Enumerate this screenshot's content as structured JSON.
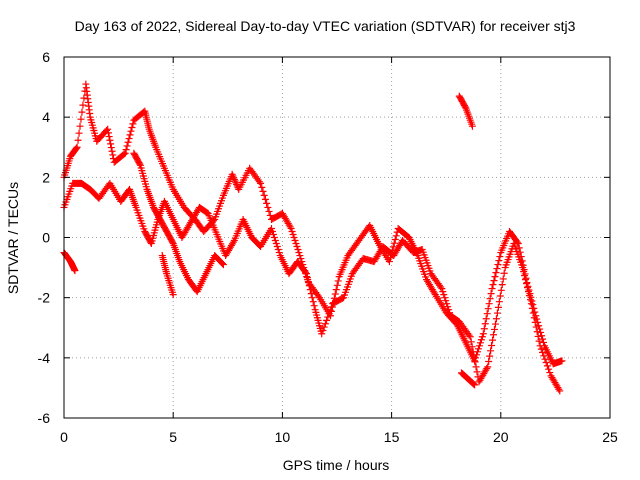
{
  "chart_data": {
    "type": "scatter",
    "title": "Day 163 of 2022, Sidereal Day-to-day VTEC variation (SDTVAR) for receiver stj3",
    "xlabel": "GPS time / hours",
    "ylabel": "SDTVAR / TECUs",
    "xlim": [
      0,
      25
    ],
    "ylim": [
      -6,
      6
    ],
    "xticks": [
      0,
      5,
      10,
      15,
      20,
      25
    ],
    "yticks": [
      -6,
      -4,
      -2,
      0,
      2,
      4,
      6
    ],
    "grid": true,
    "marker": "plus",
    "color": "#ff0000",
    "series": [
      {
        "name": "track-a",
        "points": [
          [
            0.0,
            2.0
          ],
          [
            0.3,
            2.7
          ],
          [
            0.6,
            3.0
          ],
          [
            1.0,
            5.1
          ],
          [
            1.2,
            4.0
          ],
          [
            1.5,
            3.2
          ],
          [
            2.0,
            3.6
          ],
          [
            2.3,
            2.5
          ],
          [
            2.8,
            2.8
          ],
          [
            3.2,
            3.9
          ],
          [
            3.7,
            4.2
          ],
          [
            3.9,
            3.6
          ],
          [
            4.2,
            3.0
          ],
          [
            4.6,
            2.3
          ],
          [
            5.0,
            1.6
          ],
          [
            5.5,
            1.0
          ],
          [
            6.0,
            0.6
          ],
          [
            6.4,
            0.2
          ],
          [
            6.9,
            0.6
          ],
          [
            7.3,
            1.4
          ],
          [
            7.7,
            2.1
          ],
          [
            8.0,
            1.6
          ],
          [
            8.5,
            2.3
          ],
          [
            9.0,
            1.8
          ],
          [
            9.5,
            0.6
          ],
          [
            10.0,
            0.8
          ],
          [
            10.4,
            0.3
          ],
          [
            10.8,
            -0.6
          ],
          [
            11.2,
            -1.5
          ],
          [
            11.7,
            -2.0
          ],
          [
            12.2,
            -2.6
          ],
          [
            12.6,
            -1.3
          ],
          [
            13.0,
            -0.6
          ],
          [
            13.5,
            -0.1
          ],
          [
            14.0,
            0.4
          ],
          [
            14.4,
            -0.2
          ],
          [
            14.9,
            -0.8
          ],
          [
            15.3,
            0.3
          ],
          [
            15.8,
            0.0
          ],
          [
            16.2,
            -0.6
          ],
          [
            16.6,
            -1.4
          ],
          [
            17.0,
            -1.9
          ],
          [
            17.5,
            -2.5
          ],
          [
            18.0,
            -2.9
          ],
          [
            18.4,
            -3.5
          ],
          [
            18.8,
            -4.1
          ],
          [
            19.2,
            -3.2
          ],
          [
            19.6,
            -1.7
          ],
          [
            20.0,
            -0.5
          ],
          [
            20.4,
            0.2
          ],
          [
            20.8,
            -0.2
          ],
          [
            21.2,
            -1.5
          ],
          [
            21.6,
            -2.6
          ],
          [
            22.0,
            -3.6
          ],
          [
            22.4,
            -4.2
          ],
          [
            22.8,
            -4.1
          ]
        ]
      },
      {
        "name": "track-b",
        "points": [
          [
            0.0,
            1.0
          ],
          [
            0.4,
            1.8
          ],
          [
            0.8,
            1.8
          ],
          [
            1.2,
            1.6
          ],
          [
            1.6,
            1.3
          ],
          [
            2.1,
            1.8
          ],
          [
            2.6,
            1.2
          ],
          [
            3.0,
            1.6
          ],
          [
            3.3,
            1.0
          ],
          [
            3.7,
            0.2
          ],
          [
            4.0,
            -0.2
          ],
          [
            4.3,
            0.6
          ],
          [
            4.6,
            1.2
          ],
          [
            5.0,
            0.6
          ],
          [
            5.4,
            0.0
          ],
          [
            5.8,
            0.5
          ],
          [
            6.2,
            1.0
          ],
          [
            6.6,
            0.8
          ],
          [
            7.0,
            0.1
          ],
          [
            7.4,
            -0.6
          ],
          [
            7.8,
            -0.1
          ],
          [
            8.2,
            0.6
          ],
          [
            8.6,
            0.0
          ],
          [
            9.0,
            -0.3
          ],
          [
            9.5,
            0.3
          ],
          [
            9.9,
            -0.6
          ],
          [
            10.3,
            -1.2
          ],
          [
            10.7,
            -0.8
          ],
          [
            11.1,
            -1.2
          ],
          [
            11.5,
            -2.4
          ],
          [
            11.8,
            -3.2
          ],
          [
            12.3,
            -2.2
          ],
          [
            12.8,
            -2.0
          ],
          [
            13.2,
            -1.2
          ],
          [
            13.7,
            -0.7
          ],
          [
            14.2,
            -0.8
          ],
          [
            14.6,
            -0.3
          ],
          [
            15.1,
            -0.6
          ],
          [
            15.5,
            -0.1
          ],
          [
            16.0,
            -0.5
          ],
          [
            16.4,
            -0.4
          ],
          [
            16.8,
            -1.2
          ],
          [
            17.3,
            -1.7
          ],
          [
            17.7,
            -2.6
          ],
          [
            18.1,
            -2.8
          ],
          [
            18.6,
            -3.3
          ],
          [
            19.0,
            -4.8
          ],
          [
            19.4,
            -4.3
          ],
          [
            19.8,
            -2.7
          ],
          [
            20.2,
            -1.0
          ],
          [
            20.6,
            -0.2
          ],
          [
            21.0,
            -1.0
          ],
          [
            21.4,
            -2.2
          ],
          [
            21.8,
            -3.6
          ],
          [
            22.3,
            -4.6
          ],
          [
            22.7,
            -5.1
          ]
        ]
      },
      {
        "name": "track-c",
        "points": [
          [
            0.0,
            -0.5
          ],
          [
            0.3,
            -0.8
          ],
          [
            0.5,
            -1.1
          ]
        ]
      },
      {
        "name": "track-d",
        "points": [
          [
            3.2,
            2.8
          ],
          [
            3.5,
            2.4
          ],
          [
            3.8,
            1.6
          ],
          [
            4.1,
            1.0
          ],
          [
            4.4,
            0.6
          ],
          [
            4.7,
            0.2
          ],
          [
            5.0,
            -0.2
          ],
          [
            5.3,
            -0.8
          ],
          [
            5.7,
            -1.4
          ],
          [
            6.1,
            -1.8
          ],
          [
            6.5,
            -1.2
          ],
          [
            6.9,
            -0.6
          ],
          [
            7.3,
            -0.9
          ]
        ]
      },
      {
        "name": "track-e",
        "points": [
          [
            4.5,
            -0.6
          ],
          [
            4.7,
            -1.2
          ],
          [
            5.0,
            -1.9
          ]
        ]
      },
      {
        "name": "track-f",
        "points": [
          [
            18.1,
            4.7
          ],
          [
            18.4,
            4.3
          ],
          [
            18.7,
            3.7
          ]
        ]
      },
      {
        "name": "track-g",
        "points": [
          [
            18.2,
            -4.5
          ],
          [
            18.5,
            -4.7
          ],
          [
            18.8,
            -4.9
          ]
        ]
      }
    ]
  }
}
